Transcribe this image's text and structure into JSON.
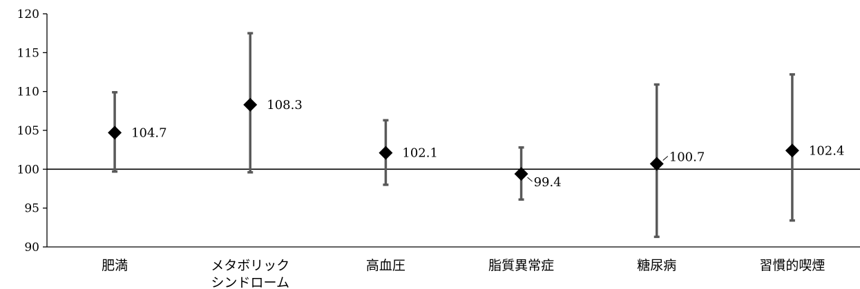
{
  "chart_data": {
    "type": "scatter",
    "title": "",
    "xlabel": "",
    "ylabel": "",
    "ylim": [
      90,
      120
    ],
    "yticks": [
      90,
      95,
      100,
      105,
      110,
      115,
      120
    ],
    "reference_line": 100,
    "grid": false,
    "legend": "none",
    "categories": [
      [
        "肥満"
      ],
      [
        "メタボリック",
        "シンドローム"
      ],
      [
        "高血圧"
      ],
      [
        "脂質異常症"
      ],
      [
        "糖尿病"
      ],
      [
        "習慣的喫煙"
      ]
    ],
    "series": [
      {
        "values": [
          104.7,
          108.3,
          102.1,
          99.4,
          100.7,
          102.4
        ],
        "lower": [
          99.7,
          99.6,
          98.0,
          96.1,
          91.3,
          93.4
        ],
        "upper": [
          109.9,
          117.5,
          106.3,
          102.8,
          110.9,
          112.2
        ],
        "labels": [
          "104.7",
          "108.3",
          "102.1",
          "99.4",
          "100.7",
          "102.4"
        ]
      }
    ],
    "colors": {
      "marker": "#000000",
      "error_bar": "#595959",
      "axis": "#000000"
    }
  }
}
